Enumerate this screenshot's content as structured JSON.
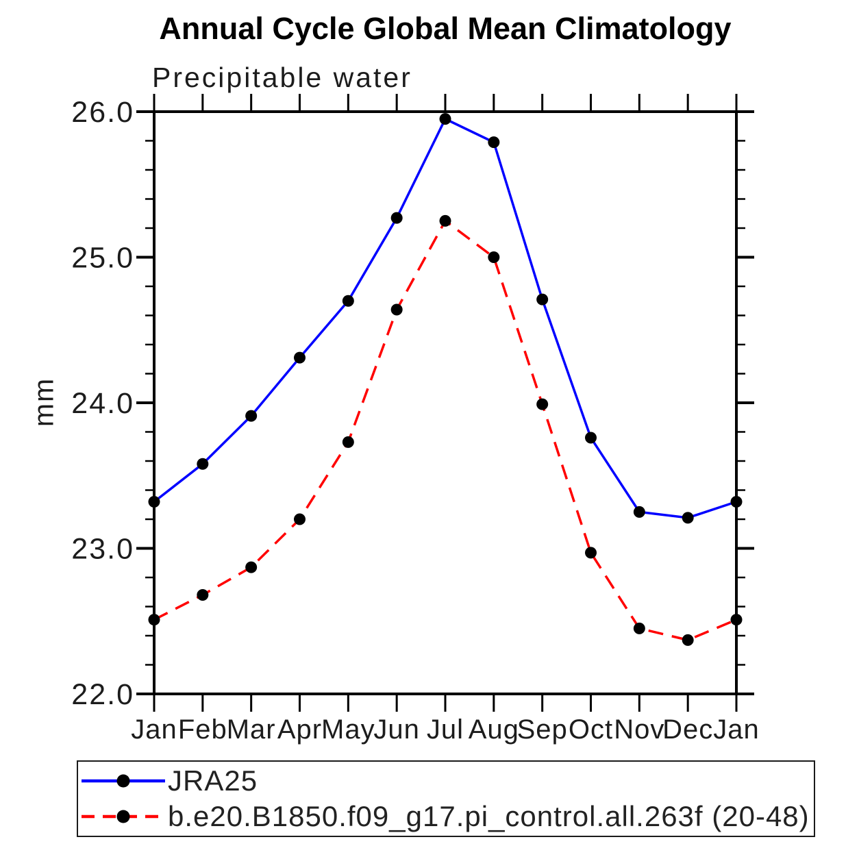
{
  "title": "Annual Cycle Global Mean Climatology",
  "subtitle": "Precipitable water",
  "ylabel": "mm",
  "chart_data": {
    "type": "line",
    "categories": [
      "Jan",
      "Feb",
      "Mar",
      "Apr",
      "May",
      "Jun",
      "Jul",
      "Aug",
      "Sep",
      "Oct",
      "Nov",
      "Dec",
      "Jan"
    ],
    "series": [
      {
        "name": "JRA25",
        "color": "#0000ff",
        "line_style": "solid",
        "marker": "filled-circle",
        "marker_color": "#000000",
        "values": [
          23.32,
          23.58,
          23.91,
          24.31,
          24.7,
          25.27,
          25.95,
          25.79,
          24.71,
          23.76,
          23.25,
          23.21,
          23.32
        ]
      },
      {
        "name": "b.e20.B1850.f09_g17.pi_control.all.263f (20-48)",
        "color": "#ff0000",
        "line_style": "dashed",
        "marker": "filled-circle",
        "marker_color": "#000000",
        "values": [
          22.51,
          22.68,
          22.87,
          23.2,
          23.73,
          24.64,
          25.25,
          25.0,
          23.99,
          22.97,
          22.45,
          22.37,
          22.51
        ]
      }
    ],
    "title": "Annual Cycle Global Mean Climatology",
    "subtitle": "Precipitable water",
    "xlabel": "",
    "ylabel": "mm",
    "ylim": [
      22.0,
      26.0
    ],
    "y_major_ticks": [
      22.0,
      23.0,
      24.0,
      25.0,
      26.0
    ],
    "y_tick_labels": [
      "22.0",
      "23.0",
      "24.0",
      "25.0",
      "26.0"
    ],
    "y_minor_step": 0.2,
    "grid": false,
    "legend_position": "bottom",
    "axis_color": "#000000",
    "tick_label_color": "#1c1c1c",
    "background_color": "#ffffff"
  }
}
